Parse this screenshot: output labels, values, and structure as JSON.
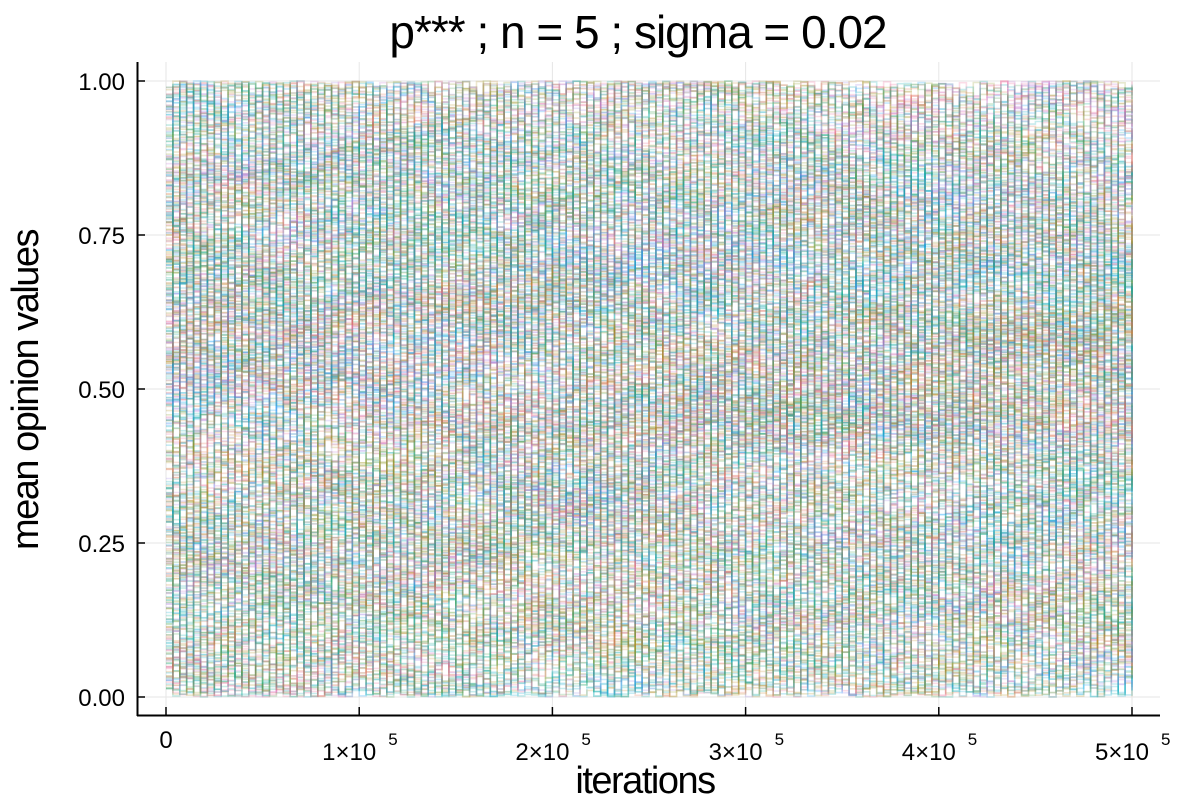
{
  "chart_data": {
    "type": "line",
    "title": "p***  ; n = 5 ; sigma = 0.02",
    "xlabel": "iterations",
    "ylabel": "mean opinion values",
    "xlim": [
      0,
      500000
    ],
    "ylim": [
      0,
      1
    ],
    "x_ticks": [
      {
        "value": 0,
        "label": "0",
        "exp": ""
      },
      {
        "value": 100000,
        "label": "1×10",
        "exp": "5"
      },
      {
        "value": 200000,
        "label": "2×10",
        "exp": "5"
      },
      {
        "value": 300000,
        "label": "3×10",
        "exp": "5"
      },
      {
        "value": 400000,
        "label": "4×10",
        "exp": "5"
      },
      {
        "value": 500000,
        "label": "5×10",
        "exp": "5"
      }
    ],
    "y_ticks": [
      {
        "value": 0.0,
        "label": "0.00"
      },
      {
        "value": 0.25,
        "label": "0.25"
      },
      {
        "value": 0.5,
        "label": "0.50"
      },
      {
        "value": 0.75,
        "label": "0.75"
      },
      {
        "value": 1.0,
        "label": "1.00"
      }
    ],
    "grid": true,
    "legend": "none",
    "series_description": "many overlapping random-walk trajectories of mean opinion values, started across 0.01–0.99, remaining spread roughly 0.05–0.95 over 500000 iterations",
    "series_summary": {
      "count_shown": "many",
      "start_range": [
        0.01,
        0.99
      ],
      "end_range": [
        0.05,
        0.93
      ],
      "step_sigma": 0.02
    },
    "colors": [
      "#009afa",
      "#e36f47",
      "#3ea44e",
      "#c371d2",
      "#ac8e18",
      "#00aaae",
      "#ed5e93",
      "#c68225",
      "#00a98d",
      "#8e971e",
      "#00a9cd",
      "#9b7fe8"
    ]
  }
}
